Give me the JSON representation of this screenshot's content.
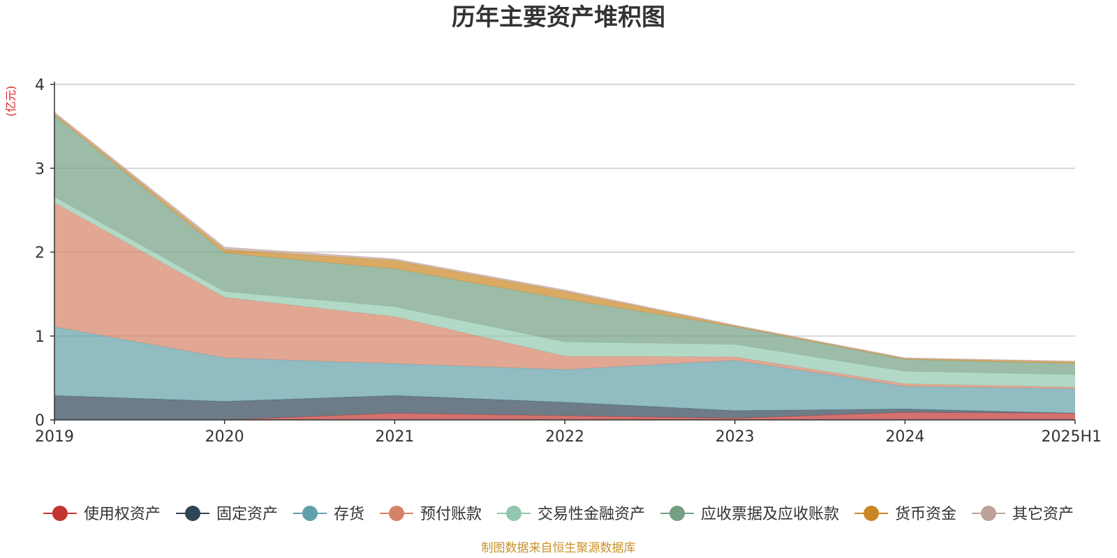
{
  "chart_data": {
    "type": "area",
    "stacked": true,
    "title": "历年主要资产堆积图",
    "unit_label": "(亿元)",
    "x": [
      "2019",
      "2020",
      "2021",
      "2022",
      "2023",
      "2024",
      "2025H1"
    ],
    "ylim": [
      0,
      4
    ],
    "yticks": [
      "0",
      "1",
      "2",
      "3",
      "4"
    ],
    "grid": true,
    "legend_position": "bottom",
    "series": [
      {
        "name": "使用权资产",
        "color": "#c23531",
        "values": [
          0.0,
          0.0,
          0.08,
          0.05,
          0.02,
          0.09,
          0.08
        ]
      },
      {
        "name": "固定资产",
        "color": "#2f4554",
        "values": [
          0.29,
          0.22,
          0.21,
          0.16,
          0.09,
          0.04,
          0.0
        ]
      },
      {
        "name": "存货",
        "color": "#61a0a8",
        "values": [
          0.82,
          0.52,
          0.38,
          0.39,
          0.6,
          0.27,
          0.29
        ]
      },
      {
        "name": "预付账款",
        "color": "#d48265",
        "values": [
          1.48,
          0.72,
          0.56,
          0.16,
          0.04,
          0.03,
          0.02
        ]
      },
      {
        "name": "交易性金融资产",
        "color": "#91c7ae",
        "values": [
          0.07,
          0.07,
          0.12,
          0.17,
          0.15,
          0.15,
          0.15
        ]
      },
      {
        "name": "应收票据及应收账款",
        "color": "#749f83",
        "values": [
          0.97,
          0.46,
          0.45,
          0.51,
          0.21,
          0.14,
          0.13
        ]
      },
      {
        "name": "货币资金",
        "color": "#ca8622",
        "values": [
          0.02,
          0.04,
          0.1,
          0.09,
          0.01,
          0.01,
          0.02
        ]
      },
      {
        "name": "其它资产",
        "color": "#bda29a",
        "values": [
          0.02,
          0.03,
          0.02,
          0.02,
          0.01,
          0.01,
          0.01
        ]
      }
    ]
  },
  "footer": {
    "source": "制图数据来自恒生聚源数据库"
  }
}
